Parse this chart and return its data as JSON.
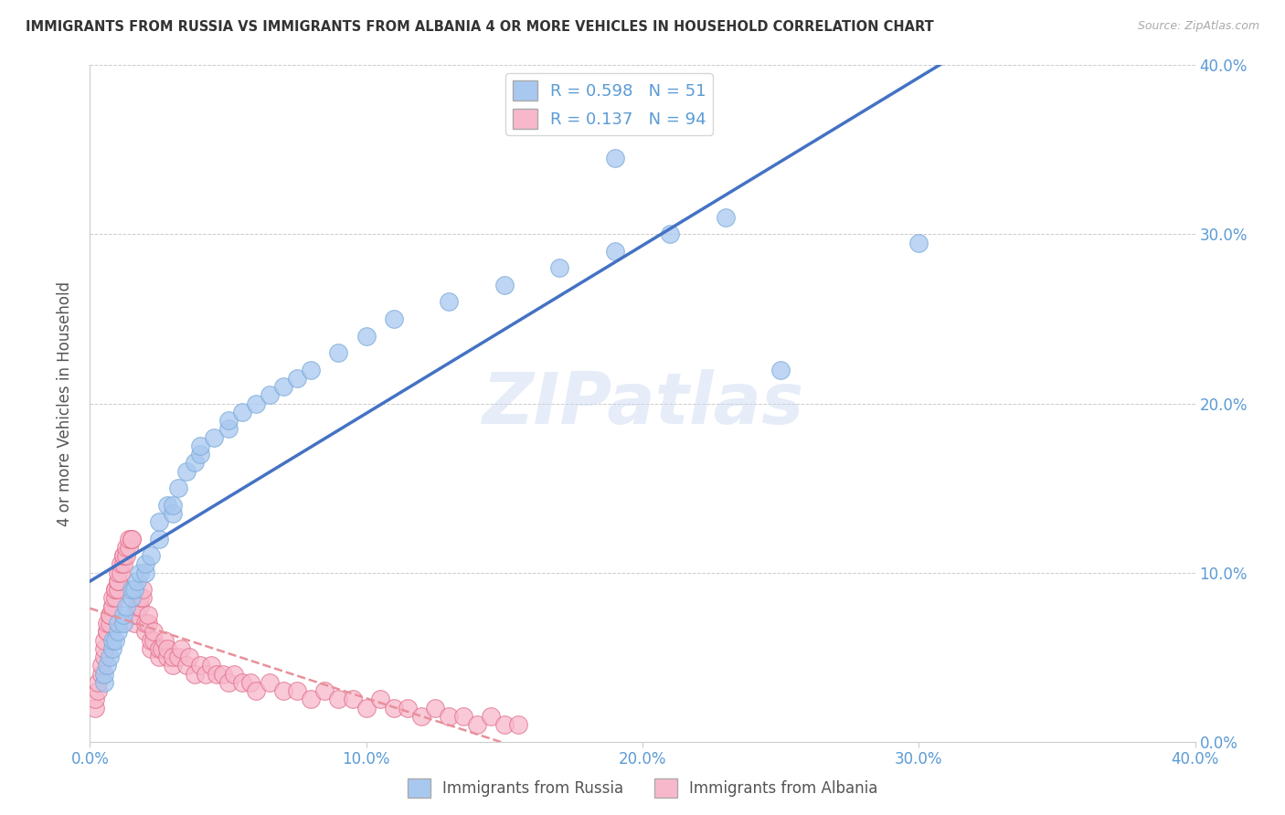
{
  "title": "IMMIGRANTS FROM RUSSIA VS IMMIGRANTS FROM ALBANIA 4 OR MORE VEHICLES IN HOUSEHOLD CORRELATION CHART",
  "source": "Source: ZipAtlas.com",
  "ylabel": "4 or more Vehicles in Household",
  "xlim": [
    0.0,
    0.4
  ],
  "ylim": [
    0.0,
    0.4
  ],
  "russia_color": "#a8c8f0",
  "russia_edge": "#7aaad8",
  "albania_color": "#f8b8cc",
  "albania_edge": "#e0708a",
  "russia_line_color": "#4472c4",
  "albania_line_color": "#e8909a",
  "russia_R": 0.598,
  "russia_N": 51,
  "albania_R": 0.137,
  "albania_N": 94,
  "watermark": "ZIPatlas",
  "tick_color": "#5b9bd5",
  "russia_scatter": [
    [
      0.005,
      0.035
    ],
    [
      0.005,
      0.04
    ],
    [
      0.006,
      0.045
    ],
    [
      0.007,
      0.05
    ],
    [
      0.008,
      0.055
    ],
    [
      0.008,
      0.06
    ],
    [
      0.009,
      0.06
    ],
    [
      0.01,
      0.065
    ],
    [
      0.01,
      0.07
    ],
    [
      0.012,
      0.07
    ],
    [
      0.012,
      0.075
    ],
    [
      0.013,
      0.08
    ],
    [
      0.015,
      0.085
    ],
    [
      0.015,
      0.09
    ],
    [
      0.016,
      0.09
    ],
    [
      0.017,
      0.095
    ],
    [
      0.018,
      0.1
    ],
    [
      0.02,
      0.1
    ],
    [
      0.02,
      0.105
    ],
    [
      0.022,
      0.11
    ],
    [
      0.025,
      0.12
    ],
    [
      0.025,
      0.13
    ],
    [
      0.028,
      0.14
    ],
    [
      0.03,
      0.135
    ],
    [
      0.03,
      0.14
    ],
    [
      0.032,
      0.15
    ],
    [
      0.035,
      0.16
    ],
    [
      0.038,
      0.165
    ],
    [
      0.04,
      0.17
    ],
    [
      0.04,
      0.175
    ],
    [
      0.045,
      0.18
    ],
    [
      0.05,
      0.185
    ],
    [
      0.05,
      0.19
    ],
    [
      0.055,
      0.195
    ],
    [
      0.06,
      0.2
    ],
    [
      0.065,
      0.205
    ],
    [
      0.07,
      0.21
    ],
    [
      0.075,
      0.215
    ],
    [
      0.08,
      0.22
    ],
    [
      0.09,
      0.23
    ],
    [
      0.1,
      0.24
    ],
    [
      0.11,
      0.25
    ],
    [
      0.13,
      0.26
    ],
    [
      0.15,
      0.27
    ],
    [
      0.17,
      0.28
    ],
    [
      0.19,
      0.29
    ],
    [
      0.21,
      0.3
    ],
    [
      0.23,
      0.31
    ],
    [
      0.25,
      0.22
    ],
    [
      0.3,
      0.295
    ],
    [
      0.19,
      0.345
    ]
  ],
  "albania_scatter": [
    [
      0.002,
      0.02
    ],
    [
      0.002,
      0.025
    ],
    [
      0.003,
      0.03
    ],
    [
      0.003,
      0.035
    ],
    [
      0.004,
      0.04
    ],
    [
      0.004,
      0.045
    ],
    [
      0.005,
      0.05
    ],
    [
      0.005,
      0.055
    ],
    [
      0.005,
      0.06
    ],
    [
      0.006,
      0.065
    ],
    [
      0.006,
      0.065
    ],
    [
      0.006,
      0.07
    ],
    [
      0.007,
      0.07
    ],
    [
      0.007,
      0.075
    ],
    [
      0.007,
      0.075
    ],
    [
      0.008,
      0.08
    ],
    [
      0.008,
      0.08
    ],
    [
      0.008,
      0.085
    ],
    [
      0.009,
      0.085
    ],
    [
      0.009,
      0.09
    ],
    [
      0.009,
      0.09
    ],
    [
      0.01,
      0.09
    ],
    [
      0.01,
      0.095
    ],
    [
      0.01,
      0.095
    ],
    [
      0.01,
      0.1
    ],
    [
      0.011,
      0.1
    ],
    [
      0.011,
      0.105
    ],
    [
      0.012,
      0.105
    ],
    [
      0.012,
      0.11
    ],
    [
      0.012,
      0.11
    ],
    [
      0.013,
      0.11
    ],
    [
      0.013,
      0.115
    ],
    [
      0.014,
      0.115
    ],
    [
      0.014,
      0.12
    ],
    [
      0.015,
      0.12
    ],
    [
      0.015,
      0.12
    ],
    [
      0.016,
      0.07
    ],
    [
      0.016,
      0.075
    ],
    [
      0.017,
      0.075
    ],
    [
      0.017,
      0.08
    ],
    [
      0.018,
      0.08
    ],
    [
      0.018,
      0.085
    ],
    [
      0.019,
      0.085
    ],
    [
      0.019,
      0.09
    ],
    [
      0.02,
      0.065
    ],
    [
      0.02,
      0.07
    ],
    [
      0.021,
      0.07
    ],
    [
      0.021,
      0.075
    ],
    [
      0.022,
      0.055
    ],
    [
      0.022,
      0.06
    ],
    [
      0.023,
      0.06
    ],
    [
      0.023,
      0.065
    ],
    [
      0.025,
      0.05
    ],
    [
      0.025,
      0.055
    ],
    [
      0.026,
      0.055
    ],
    [
      0.027,
      0.06
    ],
    [
      0.028,
      0.05
    ],
    [
      0.028,
      0.055
    ],
    [
      0.03,
      0.045
    ],
    [
      0.03,
      0.05
    ],
    [
      0.032,
      0.05
    ],
    [
      0.033,
      0.055
    ],
    [
      0.035,
      0.045
    ],
    [
      0.036,
      0.05
    ],
    [
      0.038,
      0.04
    ],
    [
      0.04,
      0.045
    ],
    [
      0.042,
      0.04
    ],
    [
      0.044,
      0.045
    ],
    [
      0.046,
      0.04
    ],
    [
      0.048,
      0.04
    ],
    [
      0.05,
      0.035
    ],
    [
      0.052,
      0.04
    ],
    [
      0.055,
      0.035
    ],
    [
      0.058,
      0.035
    ],
    [
      0.06,
      0.03
    ],
    [
      0.065,
      0.035
    ],
    [
      0.07,
      0.03
    ],
    [
      0.075,
      0.03
    ],
    [
      0.08,
      0.025
    ],
    [
      0.085,
      0.03
    ],
    [
      0.09,
      0.025
    ],
    [
      0.095,
      0.025
    ],
    [
      0.1,
      0.02
    ],
    [
      0.105,
      0.025
    ],
    [
      0.11,
      0.02
    ],
    [
      0.115,
      0.02
    ],
    [
      0.12,
      0.015
    ],
    [
      0.125,
      0.02
    ],
    [
      0.13,
      0.015
    ],
    [
      0.135,
      0.015
    ],
    [
      0.14,
      0.01
    ],
    [
      0.145,
      0.015
    ],
    [
      0.15,
      0.01
    ],
    [
      0.155,
      0.01
    ]
  ]
}
